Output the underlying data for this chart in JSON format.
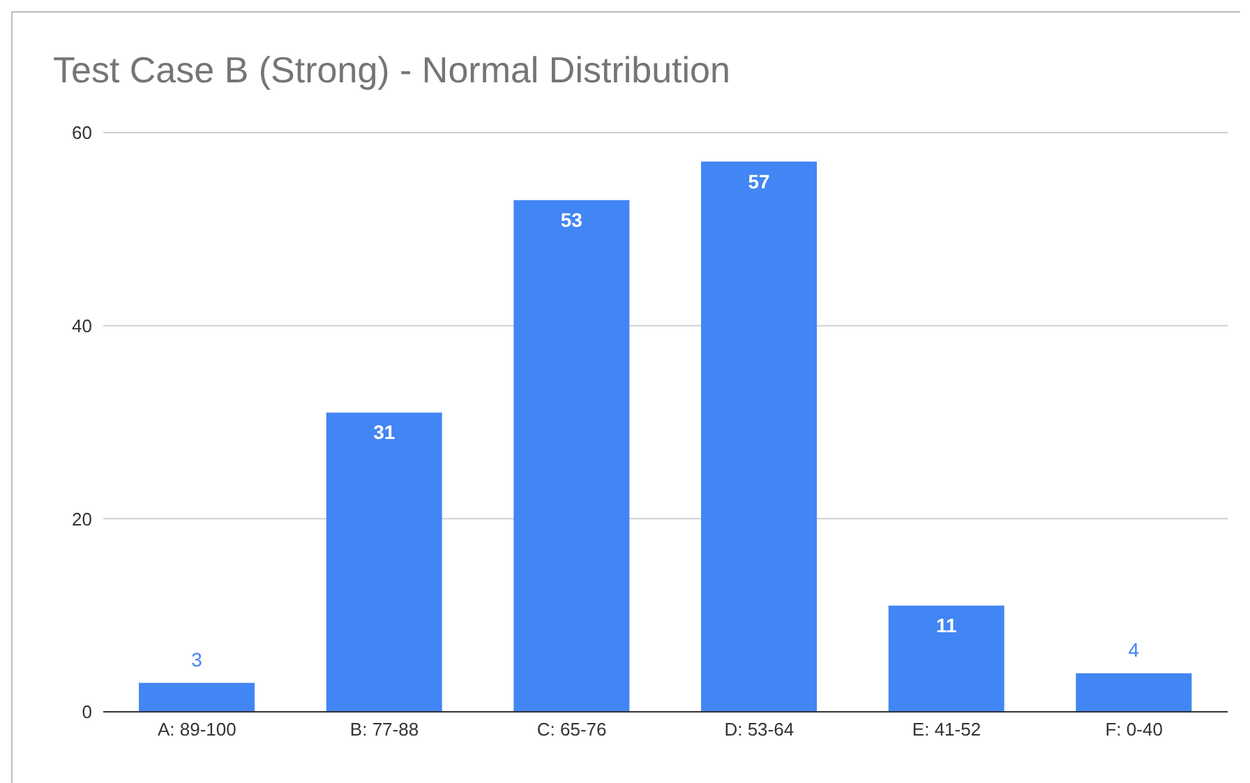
{
  "chart_data": {
    "type": "bar",
    "title": "Test Case B (Strong) - Normal Distribution",
    "categories": [
      "A: 89-100",
      "B: 77-88",
      "C: 65-76",
      "D: 53-64",
      "E: 41-52",
      "F: 0-40"
    ],
    "values": [
      3,
      31,
      53,
      57,
      11,
      4
    ],
    "color": "#4285f4",
    "ylim": [
      0,
      60
    ],
    "yticks": [
      0,
      20,
      40,
      60
    ],
    "grid": "y",
    "data_labels": true
  }
}
